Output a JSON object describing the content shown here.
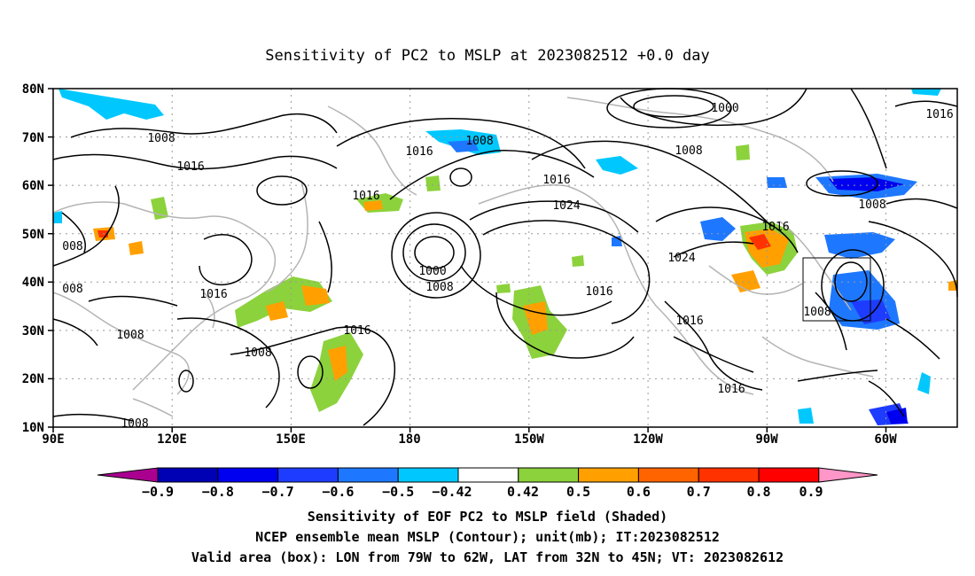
{
  "title": "Sensitivity of PC2 to MSLP at 2023082512 +0.0 day",
  "lat_labels": [
    "80N",
    "70N",
    "60N",
    "50N",
    "40N",
    "30N",
    "20N",
    "10N"
  ],
  "lon_labels": [
    "90E",
    "120E",
    "150E",
    "180",
    "150W",
    "120W",
    "90W",
    "60W"
  ],
  "contour_labels": [
    "1000",
    "1016",
    "1008",
    "1016",
    "1008",
    "1008",
    "1016",
    "1016",
    "1016",
    "1024",
    "1016",
    "1000",
    "1008",
    "1016",
    "1024",
    "1016",
    "1008",
    "008",
    "008",
    "1016",
    "1008",
    "1008",
    "1016",
    "1008",
    "1008",
    "1016",
    "1016",
    "1016"
  ],
  "colorbar": {
    "labels": [
      "−0.9",
      "−0.8",
      "−0.7",
      "−0.6",
      "−0.5",
      "−0.42",
      "0.42",
      "0.5",
      "0.6",
      "0.7",
      "0.8",
      "0.9"
    ],
    "colors": [
      "#aa0090",
      "#0000b4",
      "#0000f0",
      "#1e3cff",
      "#1e78ff",
      "#00c8ff",
      "#ffffff",
      "#8cd23c",
      "#ffa000",
      "#ff6400",
      "#ff3200",
      "#ff0000",
      "#ff96c8"
    ]
  },
  "captions": [
    "Sensitivity of EOF PC2 to MSLP field (Shaded)",
    "NCEP ensemble mean MSLP (Contour); unit(mb); IT:2023082512",
    "Valid area (box): LON from 79W to 62W, LAT from 32N to 45N; VT: 2023082612"
  ],
  "valid_area": {
    "lon": [
      -79,
      -62
    ],
    "lat": [
      32,
      45
    ]
  }
}
